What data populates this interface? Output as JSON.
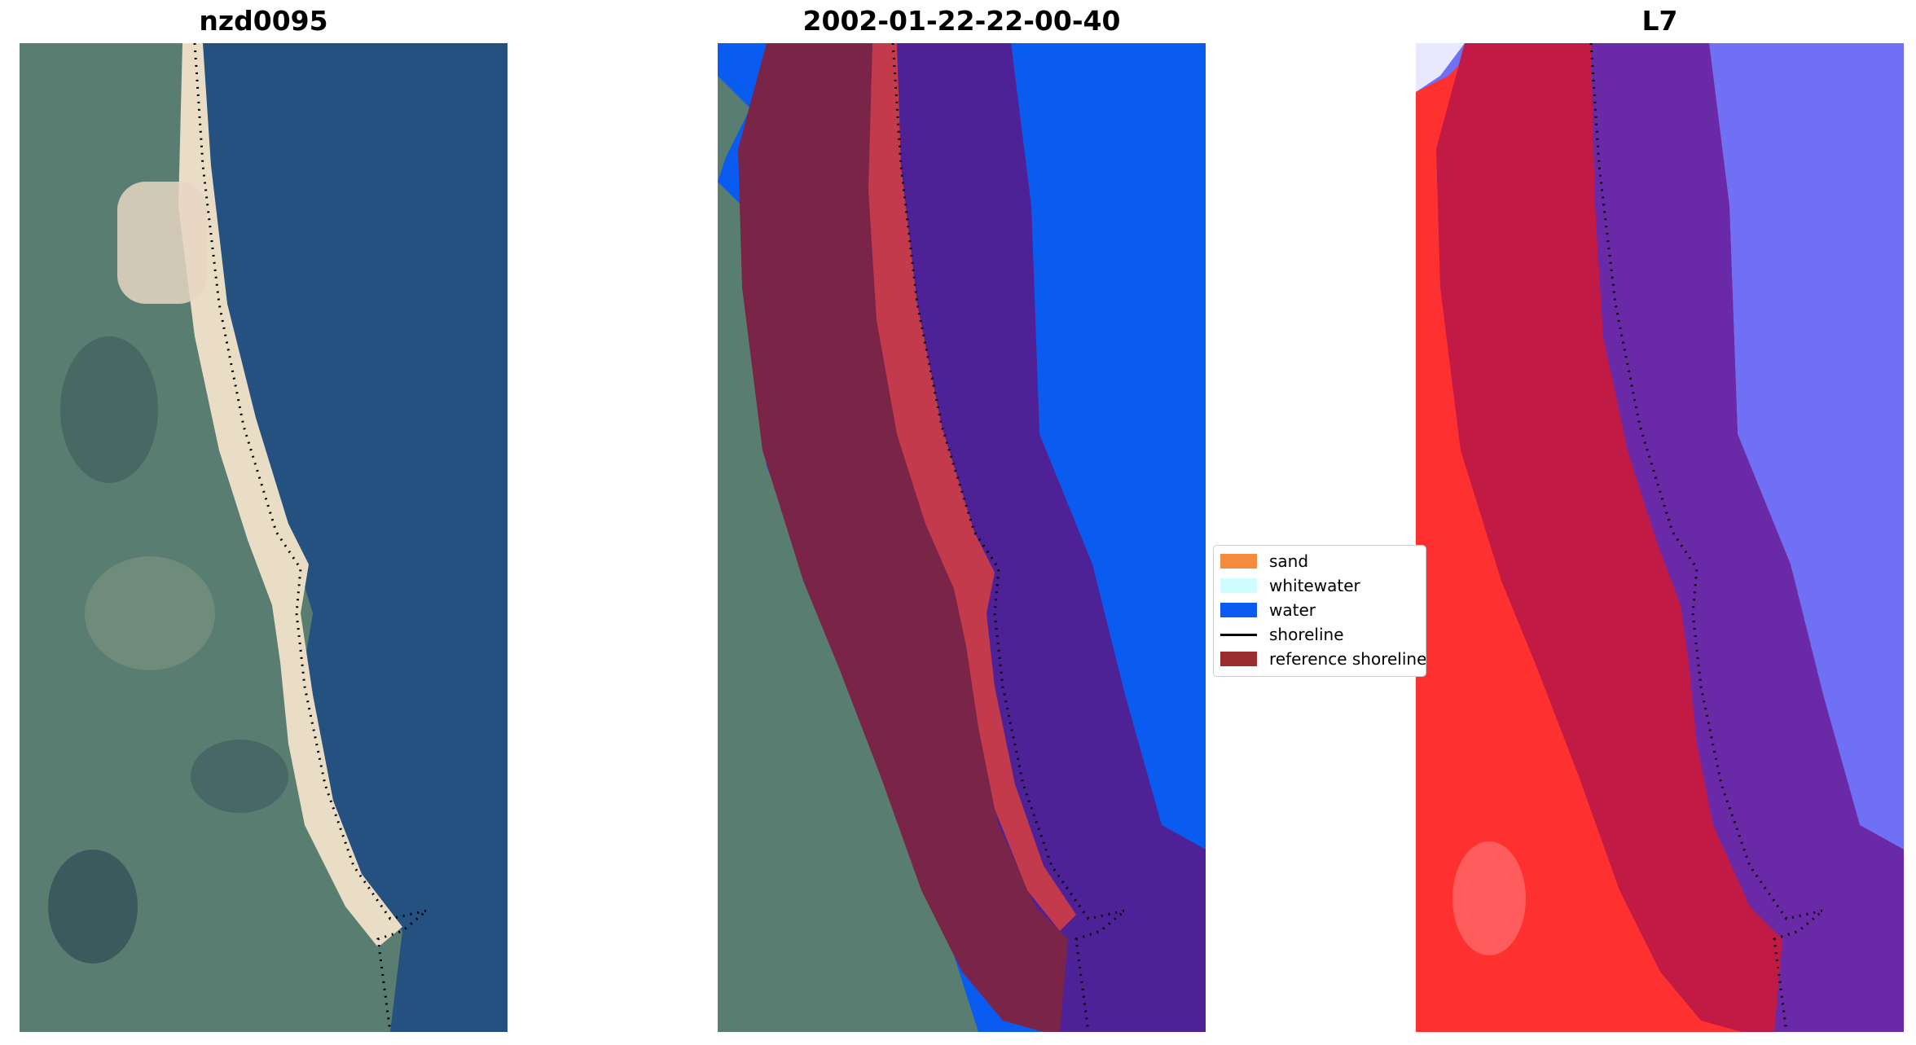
{
  "panels": [
    {
      "title": "nzd0095",
      "kind": "rgb"
    },
    {
      "title": "2002-01-22-22-00-40",
      "kind": "classified"
    },
    {
      "title": "L7",
      "kind": "index"
    }
  ],
  "legend": {
    "items": [
      {
        "label": "sand",
        "color": "#f58b3d",
        "type": "patch"
      },
      {
        "label": "whitewater",
        "color": "#cffdfd",
        "type": "patch"
      },
      {
        "label": "water",
        "color": "#0a5cf0",
        "type": "patch"
      },
      {
        "label": "shoreline",
        "color": "#000000",
        "type": "line"
      },
      {
        "label": "reference shoreline",
        "color": "#9b2d30",
        "type": "patch"
      }
    ]
  },
  "colors": {
    "sea": "#24517f",
    "land": "#5a7d72",
    "beach": "#e9ddc6",
    "buffer": "#7a2448",
    "classified_water": "#0a5cf0",
    "buffer_water": "#4f2196",
    "index_land": "#ff3030",
    "index_water": "#7070f5"
  }
}
